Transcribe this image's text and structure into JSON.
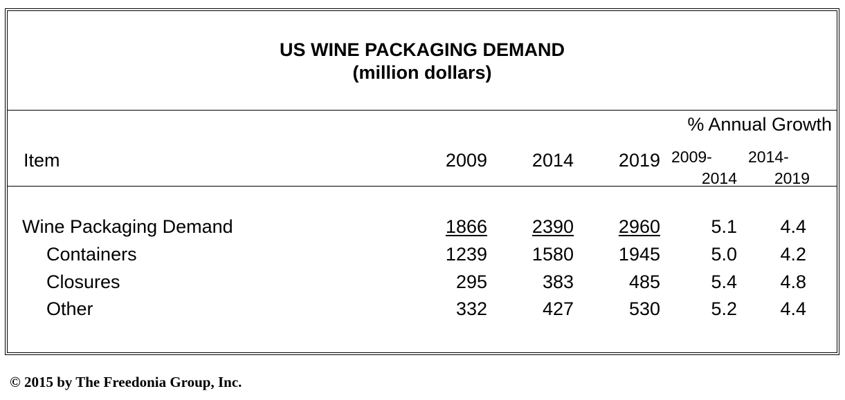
{
  "chart_data": {
    "type": "table",
    "title": "US WINE PACKAGING DEMAND",
    "subtitle": "(million dollars)",
    "header": {
      "item": "Item",
      "growth_group": "% Annual Growth",
      "years": [
        "2009",
        "2014",
        "2019"
      ],
      "growth_periods": [
        {
          "top": "2009-",
          "bottom": "2014"
        },
        {
          "top": "2014-",
          "bottom": "2019"
        }
      ]
    },
    "rows": [
      {
        "label": "Wine Packaging Demand",
        "values": [
          "1866",
          "2390",
          "2960"
        ],
        "growth": [
          "5.1",
          "4.4"
        ],
        "total": true
      },
      {
        "label": "Containers",
        "values": [
          "1239",
          "1580",
          "1945"
        ],
        "growth": [
          "5.0",
          "4.2"
        ]
      },
      {
        "label": "Closures",
        "values": [
          "295",
          "383",
          "485"
        ],
        "growth": [
          "5.4",
          "4.8"
        ]
      },
      {
        "label": "Other",
        "values": [
          "332",
          "427",
          "530"
        ],
        "growth": [
          "5.2",
          "4.4"
        ]
      }
    ]
  },
  "footer": {
    "copyright": "© 2015 by The Freedonia Group, Inc."
  }
}
